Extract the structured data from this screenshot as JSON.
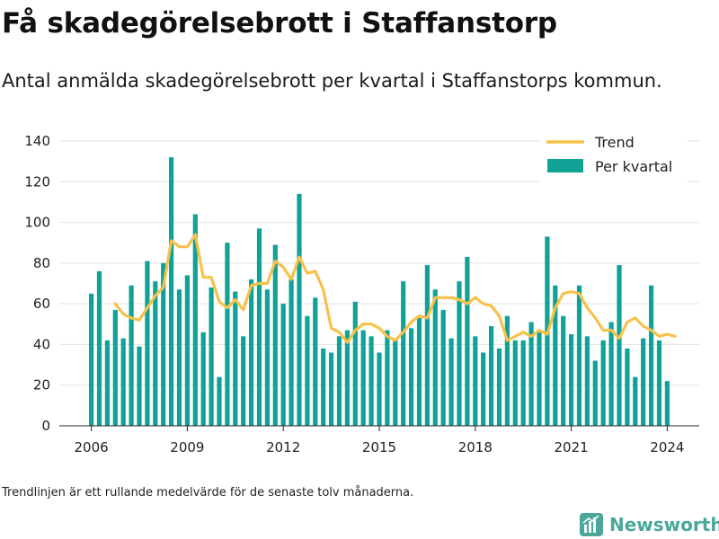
{
  "title": "Få skadegörelsebrott i Staffanstorp",
  "subtitle": "Antal anmälda skadegörelsebrott per kvartal i Staffanstorps kommun.",
  "footnote": "Trendlinjen är ett rullande medelvärde för de senaste tolv månaderna.",
  "brand": {
    "name": "Newsworthy",
    "icon": "newsworthy-logo-icon"
  },
  "colors": {
    "bars": "#10a296",
    "trend": "#f8c14a",
    "grid": "#e3e3e3",
    "axis": "#222222"
  },
  "chart_data": {
    "type": "bar",
    "xlim": [
      2005,
      2025
    ],
    "ylim": [
      0,
      140
    ],
    "x_ticks": [
      2006,
      2009,
      2012,
      2015,
      2018,
      2021,
      2024
    ],
    "y_ticks": [
      0,
      20,
      40,
      60,
      80,
      100,
      120,
      140
    ],
    "grid": "horizontal",
    "legend_position": "top-right",
    "start_year": 2006,
    "series": [
      {
        "name": "Trend",
        "kind": "line",
        "start_index": 3,
        "values": [
          60,
          55,
          53,
          52,
          58,
          64,
          68,
          91,
          88,
          88,
          94,
          73,
          73,
          61,
          58,
          62,
          57,
          69,
          70,
          70,
          81,
          78,
          72,
          83,
          75,
          76,
          67,
          48,
          46,
          41,
          47,
          50,
          50,
          48,
          44,
          42,
          46,
          51,
          54,
          53,
          63,
          63,
          63,
          62,
          60,
          63,
          60,
          59,
          54,
          42,
          44,
          46,
          44,
          47,
          45,
          58,
          65,
          66,
          65,
          58,
          53,
          47,
          47,
          43,
          51,
          53,
          49,
          47,
          44,
          45,
          44
        ]
      },
      {
        "name": "Per kvartal",
        "kind": "bar",
        "values": [
          65,
          76,
          42,
          57,
          43,
          69,
          39,
          81,
          71,
          80,
          132,
          67,
          74,
          104,
          46,
          68,
          24,
          90,
          66,
          44,
          72,
          97,
          67,
          89,
          60,
          72,
          114,
          54,
          63,
          38,
          36,
          44,
          47,
          61,
          47,
          44,
          36,
          47,
          43,
          71,
          48,
          53,
          79,
          67,
          57,
          43,
          71,
          83,
          44,
          36,
          49,
          38,
          54,
          42,
          42,
          51,
          46,
          93,
          69,
          54,
          45,
          69,
          44,
          32,
          42,
          51,
          79,
          38,
          24,
          43,
          69,
          42,
          22
        ]
      }
    ]
  }
}
